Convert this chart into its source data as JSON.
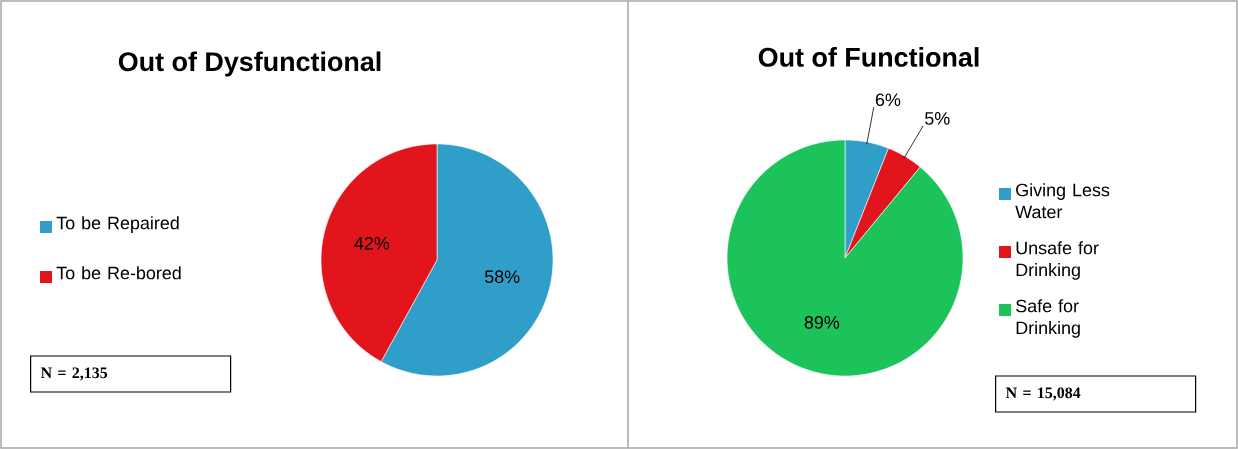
{
  "chart_data": [
    {
      "type": "pie",
      "title": "Out of Dysfunctional",
      "categories": [
        "To be Repaired",
        "To be Re-bored"
      ],
      "values": [
        58,
        42
      ],
      "colors": [
        "#2f9fc9",
        "#e3151c"
      ],
      "value_labels": [
        "58%",
        "42%"
      ],
      "legend": "left",
      "annotations": [
        "N = 2,135"
      ]
    },
    {
      "type": "pie",
      "title": "Out of Functional",
      "categories": [
        "Giving Less Water",
        "Unsafe for Drinking",
        "Safe for Drinking"
      ],
      "values": [
        6,
        5,
        89
      ],
      "colors": [
        "#2f9fc9",
        "#e3151c",
        "#1cc25a"
      ],
      "value_labels": [
        "6%",
        "5%",
        "89%"
      ],
      "legend": "right",
      "annotations": [
        "N = 15,084"
      ]
    }
  ]
}
